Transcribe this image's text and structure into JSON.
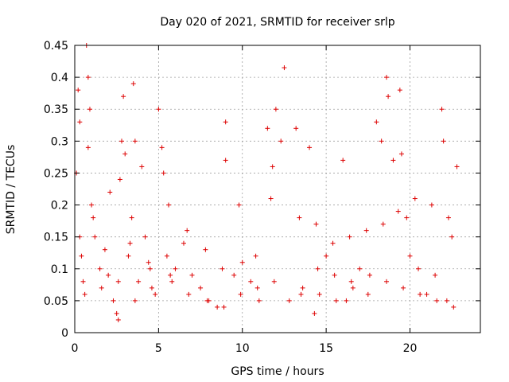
{
  "chart_data": {
    "type": "scatter",
    "title": "Day 020 of 2021, SRMTID for receiver srlp",
    "xlabel": "GPS time / hours",
    "ylabel": "SRMTID / TECUs",
    "xlim": [
      0,
      24.2
    ],
    "ylim": [
      0,
      0.45
    ],
    "xticks": [
      0,
      5,
      10,
      15,
      20
    ],
    "xtick_labels": [
      "0",
      "5",
      "10",
      "15",
      "20"
    ],
    "yticks": [
      0,
      0.05,
      0.1,
      0.15,
      0.2,
      0.25,
      0.3,
      0.35,
      0.4,
      0.45
    ],
    "ytick_labels": [
      "0",
      "0.05",
      "0.1",
      "0.15",
      "0.2",
      "0.25",
      "0.3",
      "0.35",
      "0.4",
      "0.45"
    ],
    "grid": true,
    "marker": "+",
    "series": [
      {
        "name": "SRMTID",
        "color": "#dd0000",
        "x": [
          0.1,
          0.2,
          0.3,
          0.4,
          0.5,
          0.7,
          0.8,
          0.8,
          0.9,
          1.0,
          1.2,
          1.5,
          1.8,
          2.0,
          2.3,
          2.5,
          2.6,
          2.7,
          2.8,
          2.9,
          3.0,
          3.2,
          3.4,
          3.5,
          3.6,
          3.8,
          4.0,
          4.2,
          4.5,
          4.8,
          5.0,
          5.2,
          5.3,
          5.5,
          5.8,
          6.0,
          6.5,
          7.0,
          7.5,
          8.0,
          8.5,
          9.0,
          9.0,
          9.5,
          10.0,
          10.5,
          11.0,
          11.5,
          11.8,
          12.0,
          12.3,
          12.5,
          12.8,
          13.2,
          13.5,
          14.0,
          14.3,
          14.5,
          15.0,
          15.5,
          16.0,
          16.2,
          16.5,
          17.0,
          17.5,
          18.0,
          18.3,
          18.6,
          18.7,
          19.0,
          19.4,
          19.5,
          19.8,
          20.0,
          20.5,
          21.0,
          21.5,
          21.9,
          22.0,
          22.2,
          22.5,
          22.8,
          0.3,
          1.1,
          2.1,
          3.3,
          4.4,
          5.6,
          6.7,
          7.8,
          8.8,
          9.8,
          10.8,
          11.7,
          13.4,
          14.4,
          15.4,
          16.4,
          17.4,
          18.4,
          19.3,
          20.3,
          21.3,
          22.3,
          0.6,
          1.6,
          2.6,
          3.6,
          4.6,
          5.7,
          6.8,
          7.9,
          8.9,
          9.9,
          10.9,
          11.9,
          13.6,
          14.6,
          15.6,
          16.6,
          17.6,
          18.6,
          19.6,
          20.6,
          21.6,
          22.6
        ],
        "y": [
          0.25,
          0.38,
          0.33,
          0.12,
          0.08,
          0.45,
          0.4,
          0.29,
          0.35,
          0.2,
          0.15,
          0.1,
          0.13,
          0.09,
          0.05,
          0.03,
          0.02,
          0.24,
          0.3,
          0.37,
          0.28,
          0.12,
          0.18,
          0.39,
          0.3,
          0.08,
          0.26,
          0.15,
          0.1,
          0.06,
          0.35,
          0.29,
          0.25,
          0.12,
          0.08,
          0.1,
          0.14,
          0.09,
          0.07,
          0.05,
          0.04,
          0.33,
          0.27,
          0.09,
          0.11,
          0.08,
          0.05,
          0.32,
          0.26,
          0.35,
          0.3,
          0.415,
          0.05,
          0.32,
          0.06,
          0.29,
          0.03,
          0.1,
          0.12,
          0.09,
          0.27,
          0.05,
          0.08,
          0.1,
          0.06,
          0.33,
          0.3,
          0.4,
          0.37,
          0.27,
          0.38,
          0.28,
          0.18,
          0.12,
          0.1,
          0.06,
          0.09,
          0.35,
          0.3,
          0.05,
          0.15,
          0.26,
          0.15,
          0.18,
          0.22,
          0.14,
          0.11,
          0.2,
          0.16,
          0.13,
          0.1,
          0.2,
          0.12,
          0.21,
          0.18,
          0.17,
          0.14,
          0.15,
          0.16,
          0.17,
          0.19,
          0.21,
          0.2,
          0.18,
          0.06,
          0.07,
          0.08,
          0.05,
          0.07,
          0.09,
          0.06,
          0.05,
          0.04,
          0.06,
          0.07,
          0.08,
          0.07,
          0.06,
          0.05,
          0.07,
          0.09,
          0.08,
          0.07,
          0.06,
          0.05,
          0.04
        ]
      }
    ]
  }
}
